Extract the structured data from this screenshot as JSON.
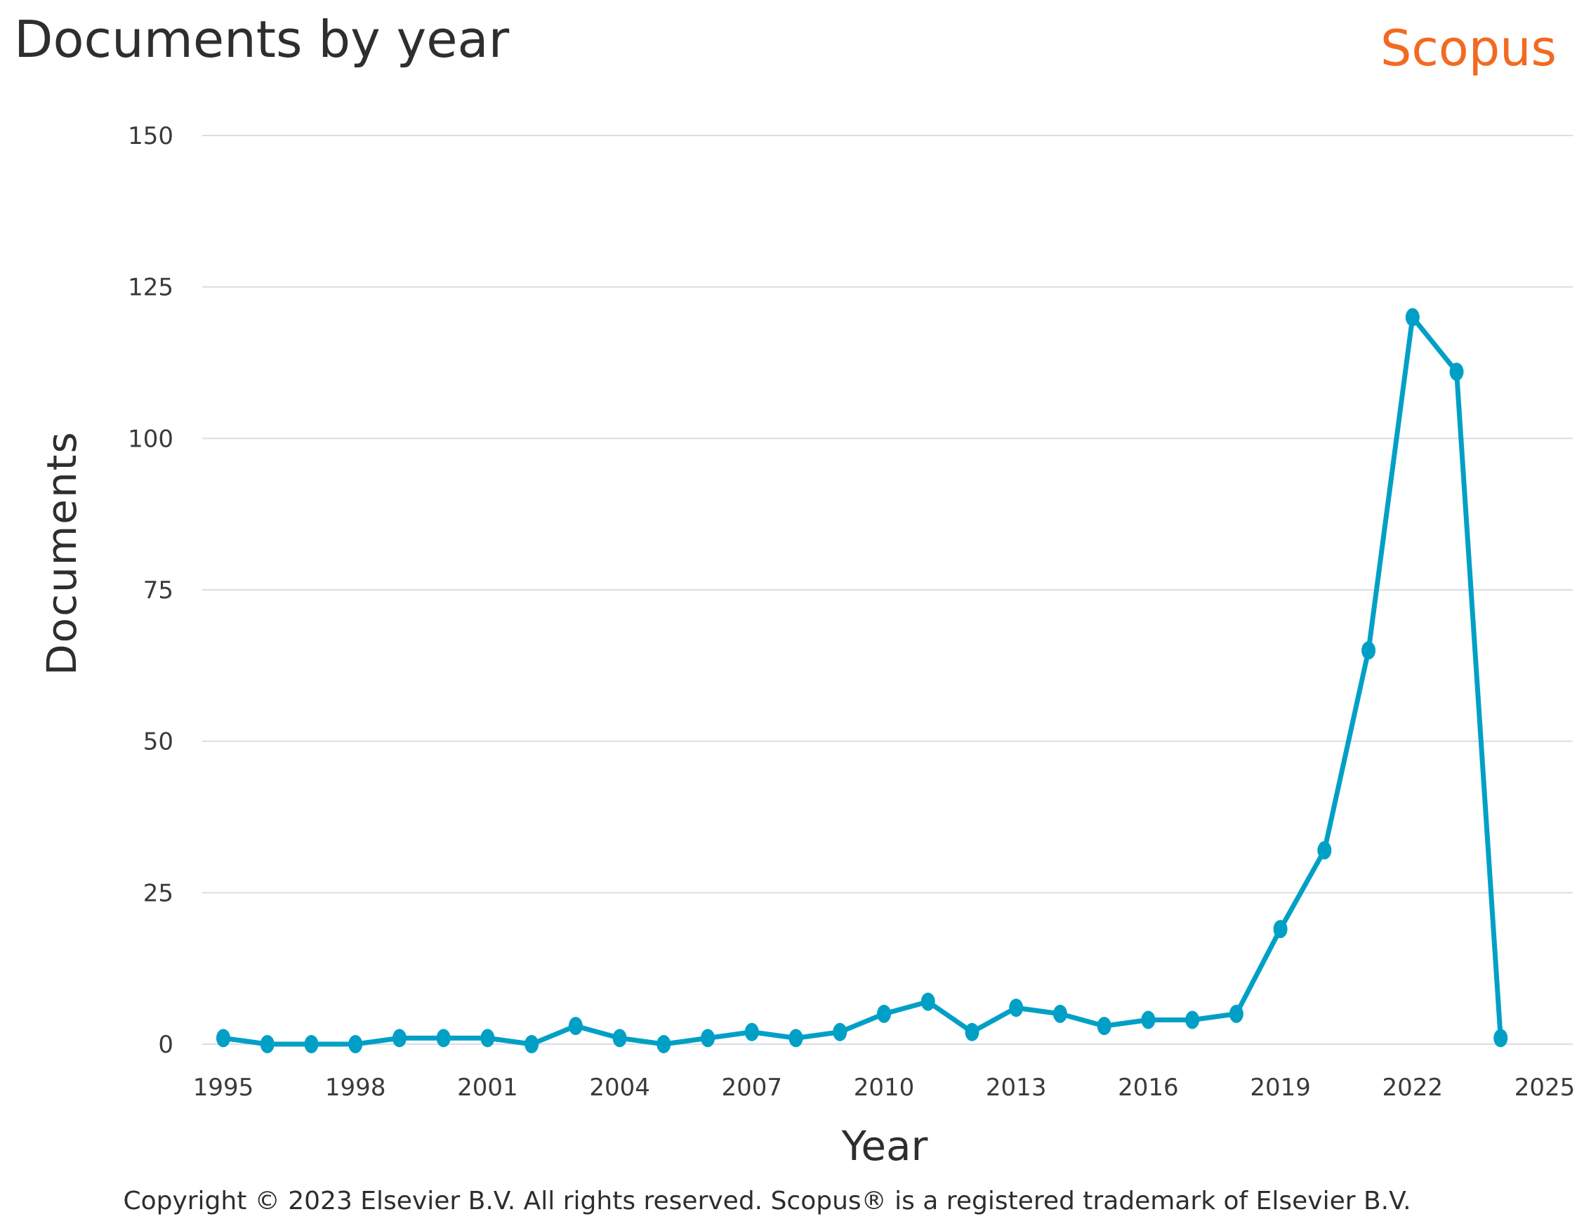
{
  "chart_data": {
    "type": "line",
    "title": "Documents by year",
    "brand": "Scopus",
    "xlabel": "Year",
    "ylabel": "Documents",
    "footer": "Copyright © 2023 Elsevier B.V. All rights reserved. Scopus® is a registered trademark of Elsevier B.V.",
    "xlim": [
      1995,
      2025
    ],
    "ylim": [
      0,
      150
    ],
    "x_ticks": [
      1995,
      1998,
      2001,
      2004,
      2007,
      2010,
      2013,
      2016,
      2019,
      2022,
      2025
    ],
    "y_ticks": [
      0,
      25,
      50,
      75,
      100,
      125,
      150
    ],
    "grid": true,
    "series": [
      {
        "name": "Documents",
        "color": "#00a0c6",
        "x": [
          1995,
          1996,
          1997,
          1998,
          1999,
          2000,
          2001,
          2002,
          2003,
          2004,
          2005,
          2006,
          2007,
          2008,
          2009,
          2010,
          2011,
          2012,
          2013,
          2014,
          2015,
          2016,
          2017,
          2018,
          2019,
          2020,
          2021,
          2022,
          2023,
          2024
        ],
        "y": [
          1,
          0,
          0,
          0,
          1,
          1,
          1,
          0,
          3,
          1,
          0,
          1,
          2,
          1,
          2,
          5,
          7,
          2,
          6,
          5,
          3,
          4,
          4,
          5,
          19,
          32,
          65,
          120,
          111,
          1
        ]
      }
    ]
  },
  "colors": {
    "grid": "#d9dde3",
    "line": "#00a0c6",
    "brand": "#f26a21",
    "text": "#2e2e2e"
  }
}
